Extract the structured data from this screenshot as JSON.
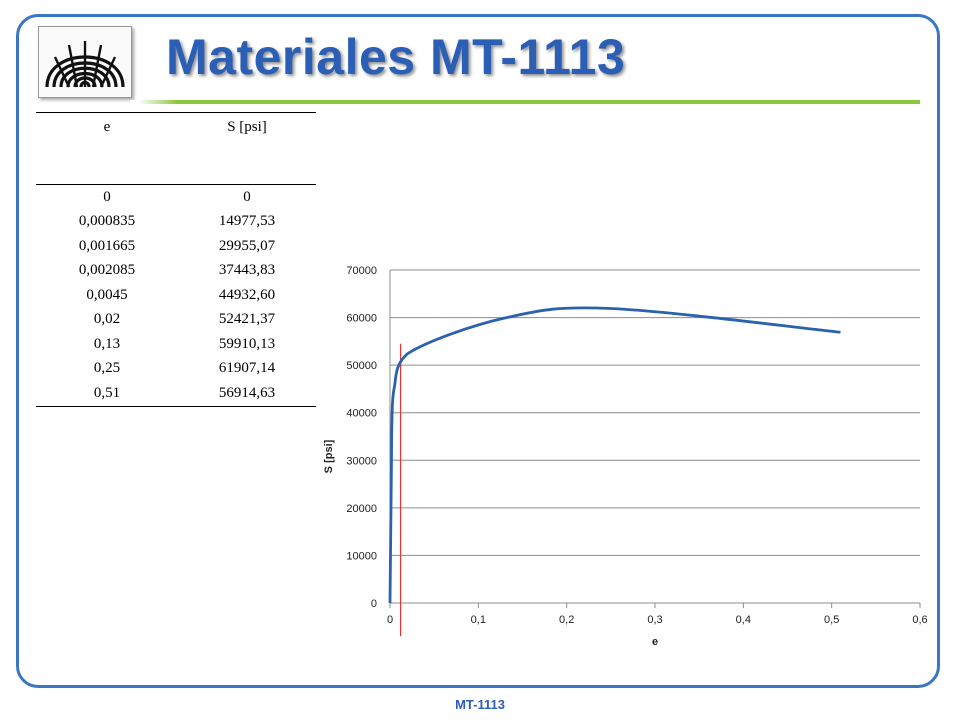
{
  "header": {
    "title": "Materiales MT-1113"
  },
  "table": {
    "headers": [
      "e",
      "S [psi]"
    ],
    "rows": [
      [
        "0",
        "0"
      ],
      [
        "0,000835",
        "14977,53"
      ],
      [
        "0,001665",
        "29955,07"
      ],
      [
        "0,002085",
        "37443,83"
      ],
      [
        "0,0045",
        "44932,60"
      ],
      [
        "0,02",
        "52421,37"
      ],
      [
        "0,13",
        "59910,13"
      ],
      [
        "0,25",
        "61907,14"
      ],
      [
        "0,51",
        "56914,63"
      ]
    ]
  },
  "chart_data": {
    "type": "line",
    "xlabel": "e",
    "ylabel": "S [psi]",
    "xlim": [
      0,
      0.6
    ],
    "ylim": [
      0,
      70000
    ],
    "x_ticks": [
      "0",
      "0,1",
      "0,2",
      "0,3",
      "0,4",
      "0,5",
      "0,6"
    ],
    "y_ticks": [
      "0",
      "10000",
      "20000",
      "30000",
      "40000",
      "50000",
      "60000",
      "70000"
    ],
    "grid": "horizontal",
    "series": [
      {
        "color": "#2a62ad",
        "x": [
          0,
          0.000835,
          0.001665,
          0.002085,
          0.0045,
          0.02,
          0.13,
          0.25,
          0.51
        ],
        "y": [
          0,
          14977.53,
          29955.07,
          37443.83,
          44932.6,
          52421.37,
          59910.13,
          61907.14,
          56914.63
        ]
      }
    ],
    "marker_line": {
      "x": 0.012,
      "y_bottom": -7000,
      "y_top": 54500,
      "color": "#d83b3b"
    }
  },
  "footer": {
    "text": "MT-1113"
  }
}
